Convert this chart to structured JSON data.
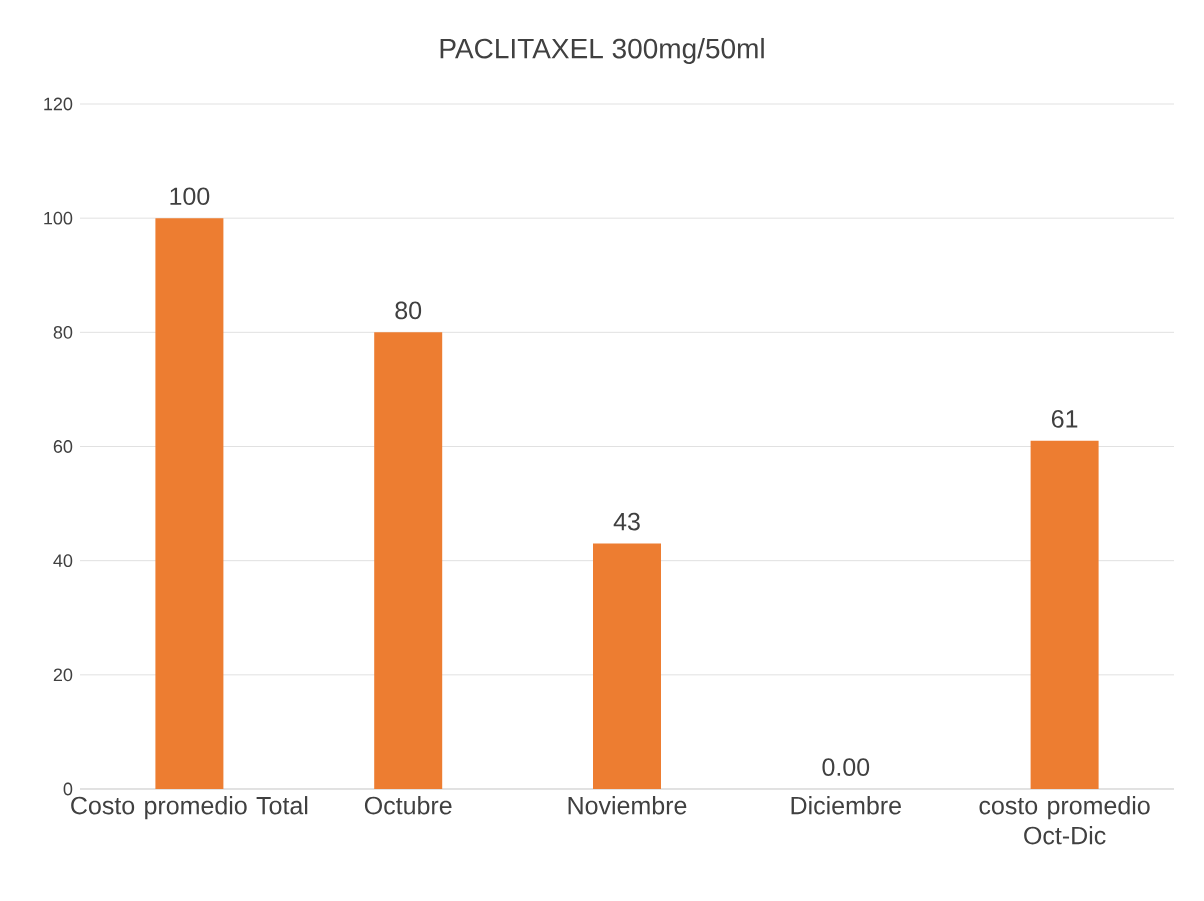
{
  "chart_data": {
    "type": "bar",
    "title": "PACLITAXEL 300mg/50ml",
    "categories": [
      "Costo promedio Total",
      "Octubre",
      "Noviembre",
      "Diciembre",
      "costo promedio Oct-Dic"
    ],
    "values": [
      100,
      80,
      43,
      0,
      61
    ],
    "value_labels": [
      "100",
      "80",
      "43",
      "0.00",
      "61"
    ],
    "color": "#ed7d31",
    "ylim": [
      0,
      120
    ],
    "yticks": [
      0,
      20,
      40,
      60,
      80,
      100,
      120
    ],
    "grid": "y"
  }
}
